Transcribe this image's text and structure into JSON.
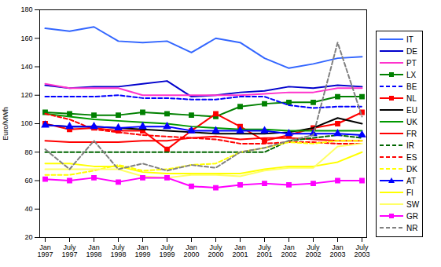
{
  "chart_data": {
    "type": "line",
    "y_label": "Euro/MWh",
    "categories": [
      "Jan 1997",
      "July 1997",
      "Jan 1998",
      "July 1998",
      "Jan 1999",
      "July 1999",
      "Jan 2000",
      "July 2000",
      "Jan 2001",
      "July 2001",
      "Jan 2002",
      "July 2002",
      "Jan 2003",
      "July 2003"
    ],
    "ylim": [
      20,
      180
    ],
    "yticks": [
      20,
      40,
      60,
      80,
      100,
      120,
      140,
      160,
      180
    ],
    "grid": false,
    "legend": "right",
    "series": [
      {
        "name": "IT",
        "color": "#3366ff",
        "line_style": "solid",
        "values": [
          167,
          165,
          168,
          158,
          157,
          158,
          150,
          160,
          157,
          146,
          139,
          142,
          146,
          147
        ]
      },
      {
        "name": "DE",
        "color": "#0000cc",
        "line_style": "solid",
        "values": [
          127,
          125,
          126,
          126,
          128,
          130,
          119,
          120,
          122,
          123,
          126,
          125,
          127,
          126
        ]
      },
      {
        "name": "PT",
        "color": "#ff33cc",
        "line_style": "solid",
        "values": [
          128,
          125,
          125,
          125,
          120,
          120,
          120,
          120,
          120,
          121,
          122,
          122,
          125,
          125
        ]
      },
      {
        "name": "LX",
        "color": "#008000",
        "line_style": "solid",
        "marker": "square",
        "values": [
          108,
          107,
          106,
          106,
          108,
          107,
          106,
          105,
          112,
          114,
          115,
          115,
          119,
          119
        ]
      },
      {
        "name": "BE",
        "color": "#0000ff",
        "line_style": "dashed",
        "values": [
          119,
          119,
          119,
          120,
          118,
          118,
          117,
          117,
          119,
          119,
          113,
          111,
          112,
          112
        ]
      },
      {
        "name": "NL",
        "color": "#ff0000",
        "line_style": "solid",
        "marker": "square",
        "values": [
          100,
          96,
          97,
          95,
          95,
          82,
          95,
          107,
          98,
          88,
          92,
          97,
          100,
          108
        ]
      },
      {
        "name": "EU",
        "color": "#000000",
        "line_style": "solid",
        "values": [
          99,
          98,
          98,
          97,
          96,
          95,
          94,
          93,
          93,
          93,
          94,
          97,
          104,
          100
        ]
      },
      {
        "name": "UK",
        "color": "#009900",
        "line_style": "solid",
        "values": [
          107,
          105,
          103,
          102,
          101,
          100,
          98,
          97,
          96,
          96,
          95,
          95,
          95,
          95
        ]
      },
      {
        "name": "FR",
        "color": "#ff0000",
        "line_style": "solid",
        "values": [
          88,
          87,
          87,
          87,
          88,
          88,
          90,
          91,
          89,
          90,
          90,
          89,
          88,
          88
        ]
      },
      {
        "name": "IR",
        "color": "#006600",
        "line_style": "dashed",
        "values": [
          80,
          80,
          80,
          80,
          80,
          80,
          80,
          80,
          80,
          80,
          88,
          90,
          92,
          90
        ]
      },
      {
        "name": "ES",
        "color": "#ff0000",
        "line_style": "dashed",
        "values": [
          107,
          103,
          96,
          94,
          92,
          91,
          90,
          89,
          86,
          86,
          87,
          87,
          86,
          86
        ]
      },
      {
        "name": "DK",
        "color": "#ffff00",
        "line_style": "dashed",
        "values": [
          64,
          64,
          67,
          71,
          67,
          68,
          71,
          72,
          80,
          83,
          87,
          86,
          88,
          88
        ]
      },
      {
        "name": "AT",
        "color": "#0000ff",
        "line_style": "solid",
        "marker": "triangle",
        "values": [
          99,
          98,
          98,
          97,
          98,
          98,
          95,
          95,
          95,
          95,
          93,
          93,
          93,
          92
        ]
      },
      {
        "name": "FI",
        "color": "#ffff00",
        "line_style": "solid",
        "values": [
          72,
          72,
          70,
          70,
          66,
          65,
          65,
          65,
          65,
          68,
          70,
          70,
          73,
          80
        ]
      },
      {
        "name": "SW",
        "color": "#ffff66",
        "line_style": "solid",
        "values": [
          68,
          68,
          68,
          68,
          63,
          62,
          64,
          64,
          63,
          67,
          69,
          69,
          84,
          86
        ]
      },
      {
        "name": "GR",
        "color": "#ff00ff",
        "line_style": "solid",
        "marker": "square",
        "values": [
          61,
          60,
          62,
          59,
          62,
          62,
          56,
          55,
          57,
          58,
          57,
          58,
          60,
          60
        ]
      },
      {
        "name": "NR",
        "color": "#808080",
        "line_style": "dashed",
        "values": [
          82,
          68,
          88,
          68,
          72,
          67,
          71,
          69,
          80,
          83,
          88,
          92,
          157,
          105
        ]
      }
    ]
  }
}
